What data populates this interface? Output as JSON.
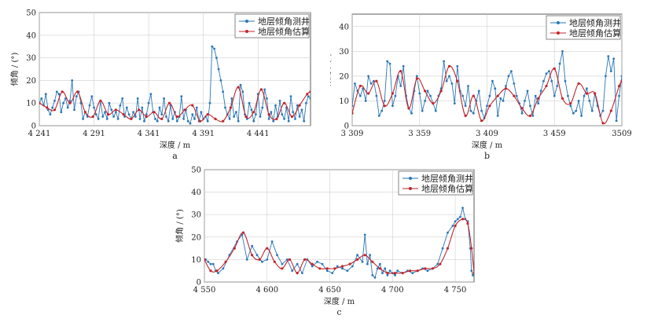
{
  "colors": {
    "measured": "#2a76b6",
    "estimated": "#c1262d",
    "grid": "#cfcfcf",
    "axis": "#333333"
  },
  "chart_data": [
    {
      "id": "a",
      "type": "line",
      "subtitle": "a",
      "xlabel": "深度 / m",
      "ylabel": "倾角 / (°)",
      "xlim": [
        4241,
        4489
      ],
      "ylim": [
        0,
        50
      ],
      "xticks": [
        4241,
        4291,
        4341,
        4391,
        4441
      ],
      "xtick_labels": [
        "4 241",
        "4 291",
        "4 341",
        "4 391",
        "4 441"
      ],
      "yticks": [
        0,
        10,
        20,
        30,
        40,
        50
      ],
      "legend": "top-right",
      "grid": true,
      "series": [
        {
          "name": "地层倾角测井",
          "role": "measured",
          "x": [
            4241,
            4243,
            4245,
            4247,
            4249,
            4251,
            4253,
            4255,
            4257,
            4259,
            4261,
            4263,
            4265,
            4267,
            4269,
            4271,
            4273,
            4275,
            4277,
            4279,
            4281,
            4283,
            4285,
            4287,
            4289,
            4291,
            4293,
            4295,
            4297,
            4299,
            4301,
            4303,
            4305,
            4307,
            4309,
            4311,
            4313,
            4315,
            4317,
            4319,
            4321,
            4323,
            4325,
            4327,
            4329,
            4331,
            4333,
            4335,
            4337,
            4339,
            4341,
            4343,
            4345,
            4347,
            4349,
            4351,
            4353,
            4355,
            4357,
            4359,
            4361,
            4363,
            4365,
            4367,
            4369,
            4371,
            4373,
            4375,
            4377,
            4379,
            4381,
            4383,
            4385,
            4387,
            4389,
            4391,
            4393,
            4395,
            4397,
            4399,
            4401,
            4403,
            4405,
            4407,
            4409,
            4411,
            4413,
            4415,
            4417,
            4419,
            4421,
            4423,
            4425,
            4427,
            4429,
            4431,
            4433,
            4435,
            4437,
            4439,
            4441,
            4443,
            4445,
            4447,
            4449,
            4451,
            4453,
            4455,
            4457,
            4459,
            4461,
            4463,
            4465,
            4467,
            4469,
            4471,
            4473,
            4475,
            4477,
            4479,
            4481,
            4483,
            4485,
            4487,
            4489
          ],
          "y": [
            10,
            12,
            9,
            14,
            7,
            5,
            8,
            11,
            15,
            14,
            6,
            10,
            12,
            8,
            11,
            20,
            7,
            13,
            15,
            10,
            3,
            6,
            4,
            9,
            13,
            8,
            5,
            3,
            11,
            4,
            6,
            3,
            10,
            7,
            4,
            6,
            3,
            9,
            12,
            4,
            8,
            5,
            3,
            6,
            4,
            12,
            3,
            8,
            2,
            5,
            10,
            14,
            6,
            3,
            2,
            8,
            5,
            12,
            4,
            2,
            9,
            3,
            6,
            2,
            4,
            13,
            3,
            7,
            2,
            1,
            5,
            3,
            8,
            2,
            6,
            3,
            4,
            2,
            10,
            35,
            34,
            30,
            25,
            20,
            15,
            8,
            5,
            3,
            12,
            4,
            6,
            2,
            18,
            15,
            5,
            3,
            10,
            7,
            2,
            5,
            14,
            4,
            8,
            16,
            12,
            3,
            6,
            2,
            9,
            4,
            11,
            5,
            3,
            8,
            2,
            13,
            6,
            3,
            9,
            4,
            7,
            2,
            10,
            13,
            12
          ]
        },
        {
          "name": "地层倾角估算",
          "role": "estimated",
          "x": [
            4241,
            4248,
            4255,
            4262,
            4269,
            4276,
            4283,
            4290,
            4297,
            4304,
            4311,
            4318,
            4325,
            4332,
            4339,
            4346,
            4353,
            4360,
            4367,
            4374,
            4381,
            4388,
            4395,
            4402,
            4409,
            4416,
            4423,
            4430,
            4437,
            4444,
            4451,
            4458,
            4465,
            4472,
            4479,
            4486,
            4489
          ],
          "y": [
            10,
            8,
            7,
            15,
            10,
            15,
            6,
            4,
            11,
            5,
            7,
            5,
            3,
            7,
            4,
            6,
            3,
            10,
            4,
            7,
            9,
            2,
            5,
            3,
            2,
            8,
            17,
            4,
            6,
            16,
            5,
            3,
            10,
            4,
            9,
            14,
            15
          ]
        }
      ]
    },
    {
      "id": "b",
      "type": "line",
      "subtitle": "b",
      "xlabel": "深度 / m",
      "ylabel": "倾角 / (°)",
      "xlim": [
        3309,
        3509
      ],
      "ylim": [
        0,
        45
      ],
      "xticks": [
        3309,
        3359,
        3409,
        3459,
        3509
      ],
      "xtick_labels": [
        "3 309",
        "3 359",
        "3 409",
        "3 459",
        "3509"
      ],
      "yticks": [
        0,
        10,
        20,
        30,
        40
      ],
      "legend": "top-right",
      "grid": true,
      "series": [
        {
          "name": "地层倾角测井",
          "role": "measured",
          "x": [
            3309,
            3311,
            3313,
            3315,
            3317,
            3319,
            3321,
            3323,
            3325,
            3327,
            3329,
            3331,
            3333,
            3335,
            3337,
            3339,
            3341,
            3343,
            3345,
            3347,
            3349,
            3351,
            3353,
            3355,
            3357,
            3359,
            3361,
            3363,
            3365,
            3367,
            3369,
            3371,
            3373,
            3375,
            3377,
            3379,
            3381,
            3383,
            3385,
            3387,
            3389,
            3391,
            3393,
            3395,
            3397,
            3399,
            3401,
            3403,
            3405,
            3407,
            3409,
            3411,
            3413,
            3415,
            3417,
            3419,
            3421,
            3423,
            3425,
            3427,
            3429,
            3431,
            3433,
            3435,
            3437,
            3439,
            3441,
            3443,
            3445,
            3447,
            3449,
            3451,
            3453,
            3455,
            3457,
            3459,
            3461,
            3463,
            3465,
            3467,
            3469,
            3471,
            3473,
            3475,
            3477,
            3479,
            3481,
            3483,
            3485,
            3487,
            3489,
            3491,
            3493,
            3495,
            3497,
            3499,
            3501,
            3503,
            3505,
            3507,
            3509
          ],
          "y": [
            8,
            17,
            14,
            12,
            15,
            10,
            20,
            17,
            18,
            12,
            4,
            6,
            10,
            26,
            25,
            8,
            12,
            20,
            16,
            24,
            12,
            7,
            5,
            14,
            20,
            13,
            6,
            10,
            14,
            12,
            9,
            6,
            12,
            15,
            26,
            18,
            20,
            17,
            9,
            24,
            14,
            12,
            8,
            16,
            6,
            5,
            10,
            14,
            6,
            3,
            8,
            12,
            18,
            15,
            4,
            11,
            10,
            16,
            20,
            22,
            17,
            12,
            9,
            5,
            10,
            14,
            8,
            4,
            12,
            9,
            14,
            18,
            21,
            22,
            18,
            12,
            16,
            25,
            30,
            18,
            12,
            8,
            5,
            6,
            10,
            4,
            12,
            15,
            10,
            6,
            13,
            8,
            4,
            6,
            20,
            28,
            22,
            27,
            2,
            12,
            20
          ]
        },
        {
          "name": "地层倾角估算",
          "role": "estimated",
          "x": [
            3309,
            3315,
            3321,
            3327,
            3333,
            3339,
            3345,
            3351,
            3357,
            3363,
            3369,
            3375,
            3381,
            3387,
            3393,
            3399,
            3405,
            3411,
            3417,
            3423,
            3429,
            3435,
            3441,
            3447,
            3453,
            3459,
            3465,
            3471,
            3477,
            3483,
            3489,
            3495,
            3501,
            3507,
            3509
          ],
          "y": [
            5,
            16,
            13,
            18,
            8,
            13,
            22,
            7,
            19,
            14,
            9,
            14,
            24,
            18,
            4,
            12,
            2,
            8,
            12,
            15,
            12,
            7,
            4,
            11,
            16,
            23,
            11,
            9,
            17,
            13,
            13,
            1,
            6,
            16,
            18
          ]
        }
      ]
    },
    {
      "id": "c",
      "type": "line",
      "subtitle": "c",
      "xlabel": "深度 / m",
      "ylabel": "倾角 / (°)",
      "xlim": [
        4550,
        4765
      ],
      "ylim": [
        0,
        50
      ],
      "xticks": [
        4550,
        4600,
        4650,
        4700,
        4750
      ],
      "xtick_labels": [
        "4 550",
        "4 600",
        "4 650",
        "4 700",
        "4 750"
      ],
      "yticks": [
        0,
        10,
        20,
        30,
        40,
        50
      ],
      "legend": "top-right",
      "grid": true,
      "series": [
        {
          "name": "地层倾角测井",
          "role": "measured",
          "x": [
            4551,
            4553,
            4555,
            4557,
            4559,
            4561,
            4565,
            4570,
            4576,
            4580,
            4584,
            4588,
            4592,
            4596,
            4600,
            4604,
            4608,
            4612,
            4616,
            4620,
            4624,
            4628,
            4632,
            4636,
            4640,
            4644,
            4648,
            4652,
            4656,
            4660,
            4664,
            4668,
            4672,
            4676,
            4678,
            4680,
            4682,
            4684,
            4686,
            4688,
            4690,
            4692,
            4694,
            4696,
            4698,
            4700,
            4702,
            4704,
            4708,
            4712,
            4716,
            4720,
            4724,
            4728,
            4732,
            4736,
            4740,
            4744,
            4748,
            4750,
            4752,
            4754,
            4756,
            4758,
            4760,
            4762,
            4763,
            4764
          ],
          "y": [
            10,
            9,
            8,
            8,
            5,
            4,
            6,
            12,
            18,
            21,
            10,
            16,
            12,
            9,
            10,
            18,
            12,
            8,
            10,
            5,
            8,
            4,
            10,
            7,
            9,
            8,
            5,
            4,
            7,
            6,
            5,
            7,
            12,
            9,
            21,
            8,
            12,
            3,
            2,
            6,
            8,
            4,
            6,
            3,
            5,
            4,
            3,
            5,
            4,
            5,
            4,
            5,
            6,
            5,
            6,
            8,
            15,
            22,
            25,
            27,
            28,
            29,
            33,
            28,
            27,
            15,
            5,
            3
          ]
        },
        {
          "name": "地层倾角估算",
          "role": "estimated",
          "x": [
            4550,
            4555,
            4560,
            4567,
            4574,
            4581,
            4588,
            4594,
            4600,
            4606,
            4612,
            4618,
            4624,
            4630,
            4636,
            4642,
            4648,
            4654,
            4660,
            4666,
            4672,
            4678,
            4684,
            4690,
            4696,
            4702,
            4708,
            4714,
            4720,
            4726,
            4732,
            4738,
            4744,
            4750,
            4756,
            4760,
            4763,
            4765
          ],
          "y": [
            10,
            5,
            5,
            9,
            15,
            22,
            12,
            10,
            15,
            9,
            6,
            10,
            4,
            10,
            8,
            6,
            6,
            6,
            7,
            8,
            10,
            12,
            9,
            6,
            4,
            4,
            4,
            5,
            5,
            6,
            6,
            8,
            15,
            25,
            28,
            26,
            15,
            4
          ]
        }
      ]
    }
  ]
}
